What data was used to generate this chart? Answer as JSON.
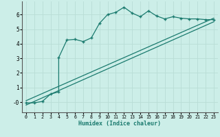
{
  "xlabel": "Humidex (Indice chaleur)",
  "bg_color": "#cceee8",
  "line_color": "#1a7a6e",
  "grid_color": "#b8ddd6",
  "xlim": [
    -0.5,
    23.5
  ],
  "ylim": [
    -0.7,
    6.9
  ],
  "xticks": [
    0,
    1,
    2,
    3,
    4,
    5,
    6,
    7,
    8,
    9,
    10,
    11,
    12,
    13,
    14,
    15,
    16,
    17,
    18,
    19,
    20,
    21,
    22,
    23
  ],
  "yticks": [
    0,
    1,
    2,
    3,
    4,
    5,
    6
  ],
  "ytick_labels": [
    "-0",
    "1",
    "2",
    "3",
    "4",
    "5",
    "6"
  ],
  "line1_x": [
    0,
    1,
    2,
    3,
    4,
    4,
    5,
    6,
    7,
    8,
    9,
    10,
    11,
    12,
    13,
    14,
    15,
    16,
    17,
    18,
    19,
    20,
    21,
    22,
    23
  ],
  "line1_y": [
    -0.05,
    -0.05,
    0.05,
    0.55,
    0.7,
    3.05,
    4.25,
    4.3,
    4.15,
    4.4,
    5.4,
    6.0,
    6.15,
    6.5,
    6.1,
    5.85,
    6.25,
    5.9,
    5.7,
    5.85,
    5.75,
    5.7,
    5.7,
    5.65,
    5.65
  ],
  "line2_x": [
    0,
    23
  ],
  "line2_y": [
    0.1,
    5.75
  ],
  "line3_x": [
    0,
    23
  ],
  "line3_y": [
    -0.2,
    5.5
  ]
}
